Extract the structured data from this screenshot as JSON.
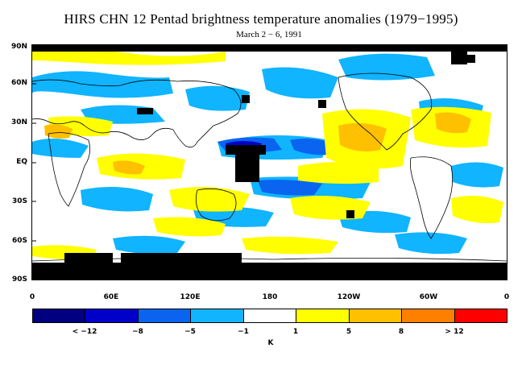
{
  "title": "HIRS CHN 12 Pentad brightness temperature anomalies (1979−1995)",
  "subtitle": "March 2 − 6, 1991",
  "lat_labels": [
    "90N",
    "60N",
    "30N",
    "EQ",
    "30S",
    "60S",
    "90S"
  ],
  "lon_labels": [
    "0",
    "60E",
    "120E",
    "180",
    "120W",
    "60W",
    "0"
  ],
  "colorbar": {
    "colors": [
      "#000080",
      "#0000c8",
      "#0a64f0",
      "#10b4ff",
      "#ffffff",
      "#ffff00",
      "#ffc000",
      "#ff8000",
      "#ff0000"
    ],
    "labels": [
      "< −12",
      "−8",
      "−5",
      "−1",
      "1",
      "5",
      "8",
      "> 12"
    ],
    "unit": "K"
  },
  "legend_ranges_K": [
    {
      "range": "< -12",
      "color": "#000080"
    },
    {
      "range": "-12 to -8",
      "color": "#0000c8"
    },
    {
      "range": "-8 to -5",
      "color": "#0a64f0"
    },
    {
      "range": "-5 to -1",
      "color": "#10b4ff"
    },
    {
      "range": "-1 to 1",
      "color": "#ffffff"
    },
    {
      "range": "1 to 5",
      "color": "#ffff00"
    },
    {
      "range": "5 to 8",
      "color": "#ffc000"
    },
    {
      "range": "8 to 12",
      "color": "#ff8000"
    },
    {
      "range": "> 12",
      "color": "#ff0000"
    }
  ]
}
